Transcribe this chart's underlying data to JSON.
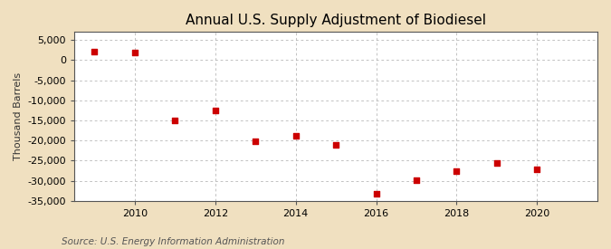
{
  "title": "Annual U.S. Supply Adjustment of Biodiesel",
  "ylabel": "Thousand Barrels",
  "source": "Source: U.S. Energy Information Administration",
  "figure_bg": "#f0e0c0",
  "plot_bg": "#ffffff",
  "years": [
    2009,
    2010,
    2011,
    2012,
    2013,
    2014,
    2015,
    2016,
    2017,
    2018,
    2019,
    2020
  ],
  "values": [
    2100,
    1900,
    -15000,
    -12500,
    -20200,
    -18800,
    -21200,
    -33200,
    -29800,
    -27600,
    -25500,
    -27200
  ],
  "marker_color": "#cc0000",
  "marker_size": 18,
  "ylim": [
    -35000,
    7000
  ],
  "yticks": [
    5000,
    0,
    -5000,
    -10000,
    -15000,
    -20000,
    -25000,
    -30000,
    -35000
  ],
  "xlim": [
    2008.5,
    2021.5
  ],
  "xticks": [
    2010,
    2012,
    2014,
    2016,
    2018,
    2020
  ],
  "grid_color": "#aaaaaa",
  "grid_linestyle": "--",
  "title_fontsize": 11,
  "label_fontsize": 8,
  "tick_fontsize": 8,
  "source_fontsize": 7.5
}
